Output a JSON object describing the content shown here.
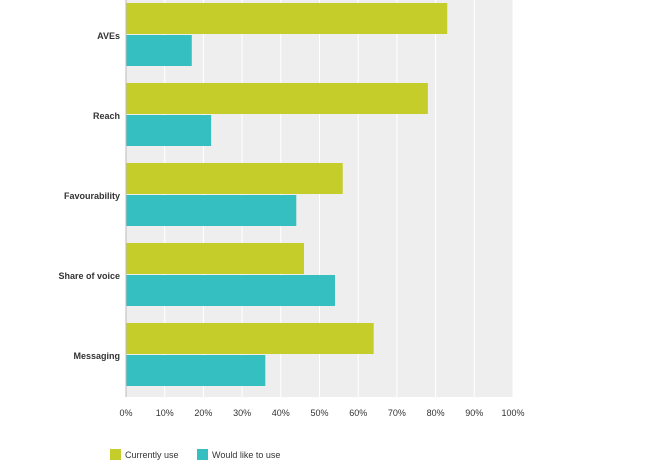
{
  "chart_data": {
    "type": "bar",
    "orientation": "horizontal",
    "categories": [
      "AVEs",
      "Reach",
      "Favourability",
      "Share of voice",
      "Messaging"
    ],
    "series": [
      {
        "name": "Currently use",
        "color": "#c5cd2a",
        "values": [
          83,
          78,
          56,
          46,
          64
        ]
      },
      {
        "name": "Would like to use",
        "color": "#35bfc1",
        "values": [
          17,
          22,
          44,
          54,
          36
        ]
      }
    ],
    "x_ticks": [
      "0%",
      "10%",
      "20%",
      "30%",
      "40%",
      "50%",
      "60%",
      "70%",
      "80%",
      "90%",
      "100%"
    ],
    "xlim": [
      0,
      100
    ],
    "grid": true,
    "legend": "bottom-left",
    "plot_background": "#eeeeee",
    "grid_color": "#ffffff"
  }
}
